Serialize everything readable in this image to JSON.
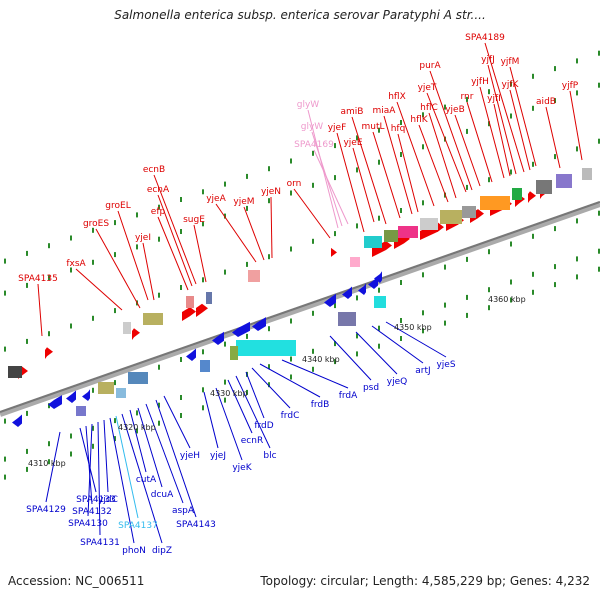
{
  "header": {
    "title": "Salmonella enterica subsp. enterica serovar Paratyphi A str...."
  },
  "footer": {
    "accession": "Accession: NC_006511",
    "summary": "Topology: circular; Length: 4,585,229 bp; Genes: 4,232"
  },
  "colors": {
    "forward_label": "#dd0000",
    "reverse_label": "#0000cc",
    "pink_label": "#ee99cc",
    "cyan_label": "#33bbee",
    "forward_gene": "#ee0000",
    "reverse_gene": "#1111dd",
    "backbone": "#888888"
  },
  "ruler": {
    "ticks": [
      {
        "label": "4310 kbp"
      },
      {
        "label": "4320 kbp"
      },
      {
        "label": "4330 kbp"
      },
      {
        "label": "4340 kbp"
      },
      {
        "label": "4350 kbp"
      },
      {
        "label": "4360 kbp"
      }
    ]
  },
  "forward_labels": [
    {
      "id": "SPA4135",
      "text": "SPA4135",
      "color": "red"
    },
    {
      "id": "fxsA",
      "text": "fxsA",
      "color": "red"
    },
    {
      "id": "groES",
      "text": "groES",
      "color": "red"
    },
    {
      "id": "groEL",
      "text": "groEL",
      "color": "red"
    },
    {
      "id": "yjeI",
      "text": "yjeI",
      "color": "red"
    },
    {
      "id": "efp",
      "text": "efp",
      "color": "red"
    },
    {
      "id": "ecnA",
      "text": "ecnA",
      "color": "red"
    },
    {
      "id": "ecnB",
      "text": "ecnB",
      "color": "red"
    },
    {
      "id": "sugE",
      "text": "sugE",
      "color": "red"
    },
    {
      "id": "yjeA",
      "text": "yjeA",
      "color": "red"
    },
    {
      "id": "yjeM",
      "text": "yjeM",
      "color": "red"
    },
    {
      "id": "yjeN",
      "text": "yjeN",
      "color": "red"
    },
    {
      "id": "orn",
      "text": "orn",
      "color": "red"
    },
    {
      "id": "glyW1",
      "text": "glyW",
      "color": "pink"
    },
    {
      "id": "glyW2",
      "text": "glyW",
      "color": "pink"
    },
    {
      "id": "SPA4169",
      "text": "SPA4169",
      "color": "pink"
    },
    {
      "id": "yjeF",
      "text": "yjeF",
      "color": "red"
    },
    {
      "id": "amiB",
      "text": "amiB",
      "color": "red"
    },
    {
      "id": "yjeE",
      "text": "yjeE",
      "color": "red"
    },
    {
      "id": "mutL",
      "text": "mutL",
      "color": "red"
    },
    {
      "id": "miaA",
      "text": "miaA",
      "color": "red"
    },
    {
      "id": "hfq",
      "text": "hfq",
      "color": "red"
    },
    {
      "id": "hflX",
      "text": "hflX",
      "color": "red"
    },
    {
      "id": "hflK",
      "text": "hflK",
      "color": "red"
    },
    {
      "id": "hflC",
      "text": "hflC",
      "color": "red"
    },
    {
      "id": "yjeT",
      "text": "yjeT",
      "color": "red"
    },
    {
      "id": "purA",
      "text": "purA",
      "color": "red"
    },
    {
      "id": "yjeB",
      "text": "yjeB",
      "color": "red"
    },
    {
      "id": "rnr",
      "text": "rnr",
      "color": "red"
    },
    {
      "id": "yjfH",
      "text": "yjfH",
      "color": "red"
    },
    {
      "id": "yjfI",
      "text": "yjfI",
      "color": "red"
    },
    {
      "id": "yjfJ",
      "text": "yjfJ",
      "color": "red"
    },
    {
      "id": "SPA4189",
      "text": "SPA4189",
      "color": "red"
    },
    {
      "id": "yjfK",
      "text": "yjfK",
      "color": "red"
    },
    {
      "id": "yjfM",
      "text": "yjfM",
      "color": "red"
    },
    {
      "id": "aidB",
      "text": "aidB",
      "color": "red"
    },
    {
      "id": "yjfP",
      "text": "yjfP",
      "color": "red"
    }
  ],
  "reverse_labels": [
    {
      "id": "SPA4129",
      "text": "SPA4129",
      "color": "blue"
    },
    {
      "id": "SPA4133",
      "text": "SPA4133",
      "color": "blue"
    },
    {
      "id": "SPA4132",
      "text": "SPA4132",
      "color": "blue"
    },
    {
      "id": "SPA4130",
      "text": "SPA4130",
      "color": "blue"
    },
    {
      "id": "SPA4131",
      "text": "SPA4131",
      "color": "blue"
    },
    {
      "id": "phoN",
      "text": "phoN",
      "color": "blue"
    },
    {
      "id": "yjdC",
      "text": "yjdC",
      "color": "blue"
    },
    {
      "id": "SPA4137",
      "text": "SPA4137",
      "color": "cyan"
    },
    {
      "id": "dipZ",
      "text": "dipZ",
      "color": "blue"
    },
    {
      "id": "cutA",
      "text": "cutA",
      "color": "blue"
    },
    {
      "id": "dcuA",
      "text": "dcuA",
      "color": "blue"
    },
    {
      "id": "aspA",
      "text": "aspA",
      "color": "blue"
    },
    {
      "id": "SPA4143",
      "text": "SPA4143",
      "color": "blue"
    },
    {
      "id": "yjeH",
      "text": "yjeH",
      "color": "blue"
    },
    {
      "id": "yjeJ",
      "text": "yjeJ",
      "color": "blue"
    },
    {
      "id": "yjeK",
      "text": "yjeK",
      "color": "blue"
    },
    {
      "id": "ecnR",
      "text": "ecnR",
      "color": "blue"
    },
    {
      "id": "blc",
      "text": "blc",
      "color": "blue"
    },
    {
      "id": "frdD",
      "text": "frdD",
      "color": "blue"
    },
    {
      "id": "frdC",
      "text": "frdC",
      "color": "blue"
    },
    {
      "id": "frdB",
      "text": "frdB",
      "color": "blue"
    },
    {
      "id": "frdA",
      "text": "frdA",
      "color": "blue"
    },
    {
      "id": "psd",
      "text": "psd",
      "color": "blue"
    },
    {
      "id": "yjeQ",
      "text": "yjeQ",
      "color": "blue"
    },
    {
      "id": "artJ",
      "text": "artJ",
      "color": "blue"
    },
    {
      "id": "yjeS",
      "text": "yjeS",
      "color": "blue"
    }
  ]
}
